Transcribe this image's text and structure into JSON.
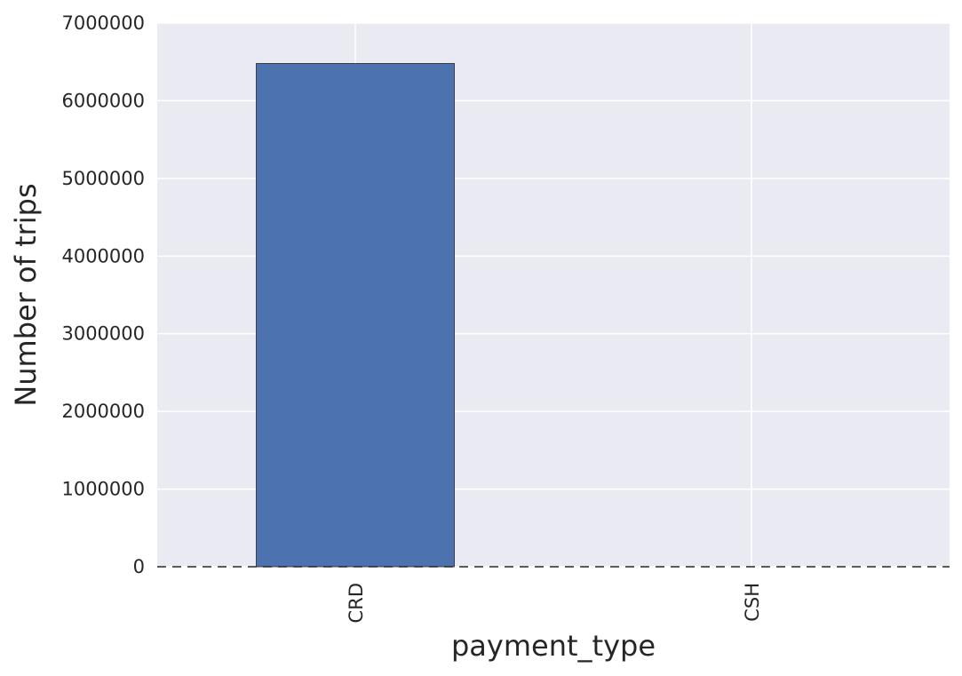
{
  "chart_data": {
    "type": "bar",
    "title": "",
    "xlabel": "payment_type",
    "ylabel": "Number of trips",
    "categories": [
      "CRD",
      "CSH"
    ],
    "values": [
      6480000,
      0
    ],
    "ylim": [
      0,
      7000000
    ],
    "yticks": [
      "0",
      "1000000",
      "2000000",
      "3000000",
      "4000000",
      "5000000",
      "6000000",
      "7000000"
    ],
    "grid": true,
    "baseline": "dashed",
    "colors": {
      "bar": "#4c72b0",
      "background": "#eaeaf2",
      "grid": "#ffffff"
    }
  }
}
